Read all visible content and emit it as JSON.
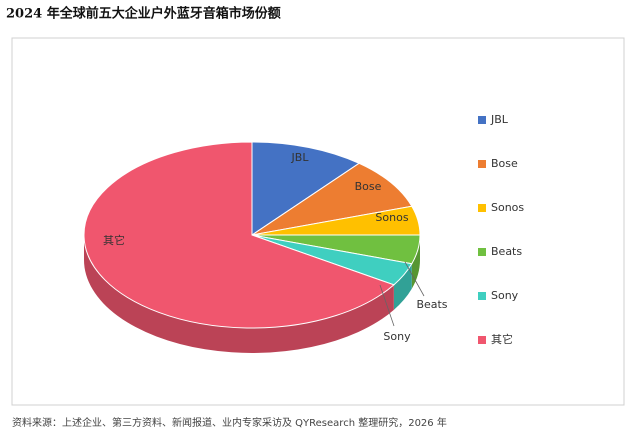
{
  "chart_data": {
    "type": "pie",
    "title": "2024 年全球前五大企业户外蓝牙音箱市场份额",
    "categories": [
      "JBL",
      "Bose",
      "Sonos",
      "Beats",
      "Sony",
      "其它"
    ],
    "values": [
      11,
      9,
      5,
      5,
      4,
      66
    ],
    "colors": [
      "#4472c4",
      "#ed7d31",
      "#ffc000",
      "#70c040",
      "#3fcfc0",
      "#f0566e"
    ],
    "legend": "right",
    "note": "资料来源：上述企业、第三方资料、新闻报道、业内专家采访及 QYResearch 整理研究，2026 年"
  }
}
